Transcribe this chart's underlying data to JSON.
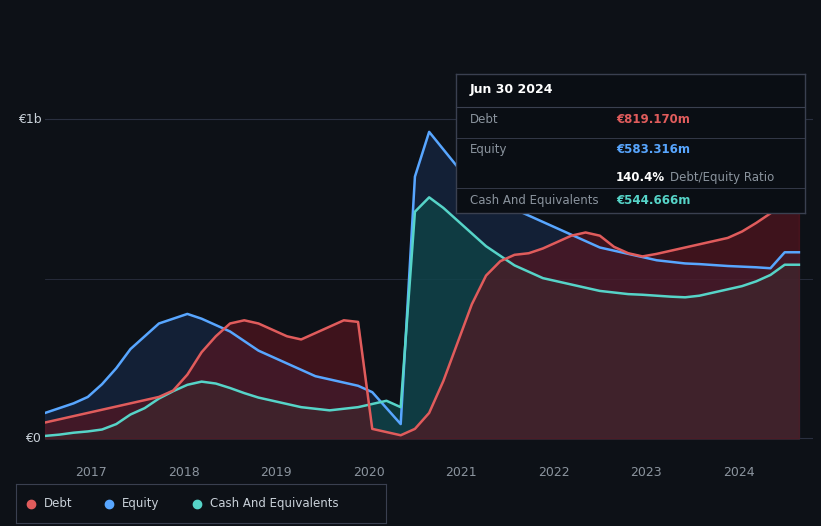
{
  "bg_color": "#0d1117",
  "grid_color": "#2a3040",
  "text_color": "#c9d1d9",
  "dim_text_color": "#8b949e",
  "debt_color": "#e05c5c",
  "equity_color": "#58a6ff",
  "cash_color": "#56d4c8",
  "debt_fill_color": "#5a1520",
  "equity_fill_color": "#1a3055",
  "cash_fill_color": "#0e4a4a",
  "ylabel_b": "€1b",
  "ylabel_0": "€0",
  "tooltip_title": "Jun 30 2024",
  "tooltip_debt_label": "Debt",
  "tooltip_debt_value": "€819.170m",
  "tooltip_equity_label": "Equity",
  "tooltip_equity_value": "€583.316m",
  "tooltip_ratio": "140.4%",
  "tooltip_ratio_label": "Debt/Equity Ratio",
  "tooltip_cash_label": "Cash And Equivalents",
  "tooltip_cash_value": "€544.666m",
  "legend_items": [
    "Debt",
    "Equity",
    "Cash And Equivalents"
  ],
  "debt": [
    50,
    60,
    70,
    80,
    90,
    100,
    110,
    120,
    130,
    150,
    200,
    270,
    320,
    360,
    370,
    360,
    340,
    320,
    310,
    330,
    350,
    370,
    365,
    30,
    20,
    10,
    30,
    80,
    180,
    300,
    420,
    510,
    555,
    575,
    580,
    595,
    615,
    635,
    645,
    635,
    600,
    580,
    570,
    578,
    588,
    598,
    608,
    618,
    628,
    648,
    675,
    705,
    750,
    819
  ],
  "equity": [
    80,
    95,
    110,
    130,
    170,
    220,
    280,
    320,
    360,
    375,
    390,
    375,
    355,
    335,
    305,
    275,
    255,
    235,
    215,
    195,
    185,
    175,
    165,
    145,
    95,
    45,
    820,
    960,
    905,
    850,
    800,
    775,
    748,
    718,
    698,
    678,
    658,
    638,
    618,
    598,
    588,
    578,
    568,
    558,
    553,
    548,
    546,
    543,
    540,
    538,
    536,
    533,
    583,
    583
  ],
  "cash": [
    8,
    12,
    18,
    22,
    28,
    45,
    75,
    95,
    125,
    148,
    168,
    178,
    172,
    158,
    142,
    128,
    118,
    108,
    98,
    93,
    88,
    93,
    98,
    108,
    118,
    98,
    710,
    755,
    722,
    682,
    642,
    602,
    572,
    542,
    522,
    502,
    492,
    482,
    472,
    462,
    457,
    452,
    450,
    447,
    444,
    442,
    447,
    457,
    467,
    477,
    492,
    512,
    544,
    544
  ],
  "n_points": 54
}
